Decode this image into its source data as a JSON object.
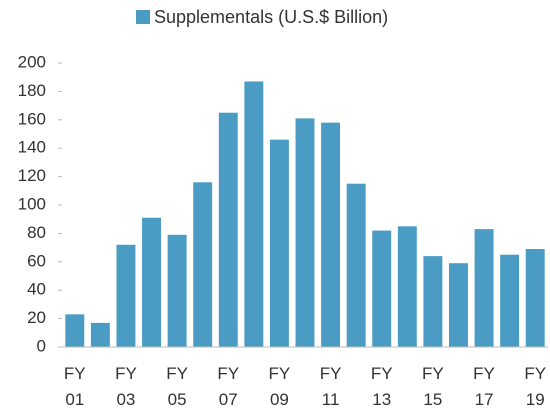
{
  "chart_data": {
    "type": "bar",
    "series": [
      {
        "name": "Supplementals (U.S.$ Billion)",
        "color": "#4a9cc4",
        "values": [
          23,
          17,
          72,
          91,
          79,
          116,
          165,
          187,
          146,
          161,
          158,
          115,
          82,
          85,
          64,
          59,
          83,
          65,
          69
        ]
      }
    ],
    "categories": [
      "FY 01",
      null,
      "FY 03",
      null,
      "FY 05",
      null,
      "FY 07",
      null,
      "FY 09",
      null,
      "FY 11",
      null,
      "FY 13",
      null,
      "FY 15",
      null,
      "FY 17",
      null,
      "FY 19"
    ],
    "ylim": [
      0,
      200
    ],
    "yticks": [
      0,
      20,
      40,
      60,
      80,
      100,
      120,
      140,
      160,
      180,
      200
    ],
    "legend": "top",
    "grid": false
  }
}
